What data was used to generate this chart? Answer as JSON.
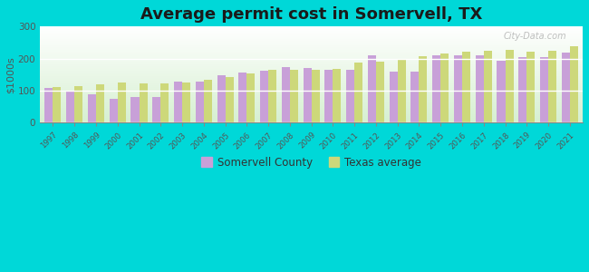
{
  "title": "Average permit cost in Somervell, TX",
  "ylabel": "$1000s",
  "years": [
    1997,
    1998,
    1999,
    2000,
    2001,
    2002,
    2003,
    2004,
    2005,
    2006,
    2007,
    2008,
    2009,
    2010,
    2011,
    2012,
    2013,
    2014,
    2015,
    2016,
    2017,
    2018,
    2019,
    2020,
    2021
  ],
  "somervell": [
    108,
    100,
    88,
    75,
    78,
    78,
    128,
    128,
    148,
    155,
    163,
    172,
    170,
    165,
    165,
    210,
    160,
    160,
    210,
    210,
    210,
    193,
    205,
    205,
    218
  ],
  "texas": [
    110,
    113,
    118,
    125,
    122,
    123,
    125,
    132,
    142,
    152,
    165,
    165,
    165,
    168,
    188,
    190,
    197,
    207,
    217,
    220,
    225,
    228,
    220,
    225,
    237
  ],
  "somervell_color": "#c8a0d8",
  "texas_color": "#cdd87a",
  "outer_bg": "#00d8d8",
  "ylim": [
    0,
    300
  ],
  "yticks": [
    0,
    100,
    200,
    300
  ],
  "title_fontsize": 13,
  "legend_labels": [
    "Somervell County",
    "Texas average"
  ],
  "plot_bg_top": "#ffffff",
  "plot_bg_bottom": "#d8f0d0"
}
